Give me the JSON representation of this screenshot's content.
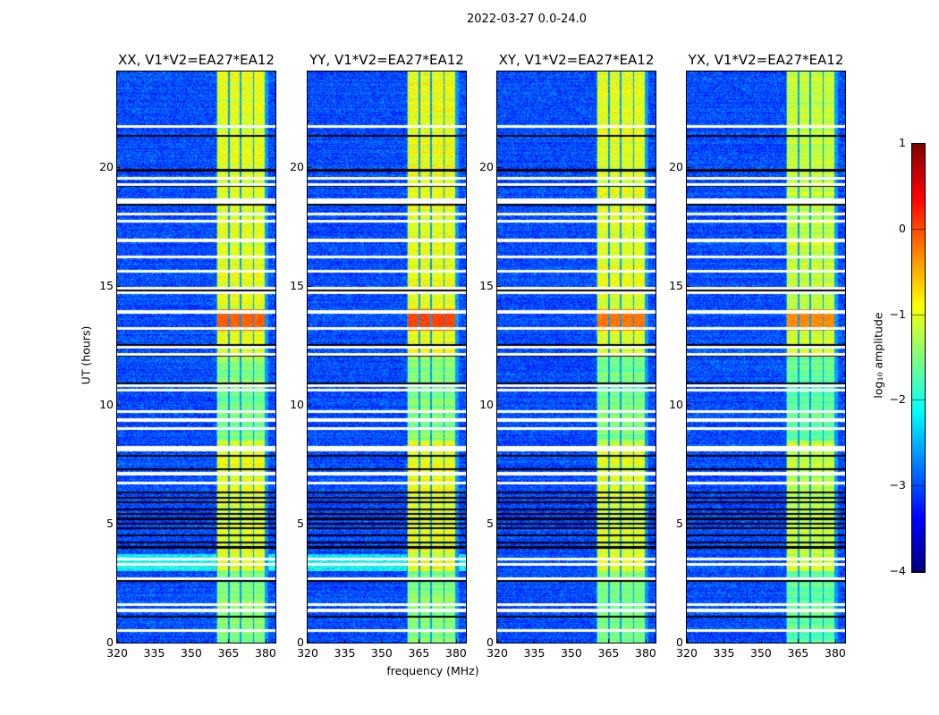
{
  "chart_data": {
    "type": "heatmap",
    "suptitle": "2022-03-27 0.0-24.0",
    "xlabel": "frequency (MHz)",
    "ylabel": "UT (hours)",
    "xlim": [
      320,
      384
    ],
    "ylim": [
      0,
      24
    ],
    "xticks": [
      "320",
      "335",
      "350",
      "365",
      "380"
    ],
    "xtick_values": [
      320,
      335,
      350,
      365,
      380
    ],
    "yticks": [
      "0",
      "5",
      "10",
      "15",
      "20"
    ],
    "ytick_values": [
      0,
      5,
      10,
      15,
      20
    ],
    "panels": [
      {
        "title": "XX, V1*V2=EA27*EA12",
        "rfi_peak": -0.1,
        "band_level": -1.0
      },
      {
        "title": "YY, V1*V2=EA27*EA12",
        "rfi_peak": 0.05,
        "band_level": -0.95
      },
      {
        "title": "XY, V1*V2=EA27*EA12",
        "rfi_peak": -0.2,
        "band_level": -1.0
      },
      {
        "title": "YX, V1*V2=EA27*EA12",
        "rfi_peak": -0.3,
        "band_level": -1.15
      }
    ],
    "background_level": -3.0,
    "signal_bands_mhz": [
      [
        360.6,
        364.8
      ],
      [
        365.4,
        369.6
      ],
      [
        370.2,
        374.8
      ],
      [
        375.4,
        379.8
      ]
    ],
    "rfi_hours": [
      13.1,
      14.0
    ],
    "flagged_hours_white": [
      21.7,
      19.5,
      19.25,
      18.55,
      18.5,
      18.0,
      17.7,
      16.9,
      16.2,
      15.6,
      14.9,
      14.7,
      13.9,
      13.2,
      12.4,
      12.1,
      10.8,
      10.6,
      9.7,
      9.35,
      9.0,
      8.2,
      8.1,
      7.1,
      6.7,
      3.5,
      3.3,
      2.7,
      1.6,
      1.35,
      0.5
    ],
    "flagged_hours_black": [
      21.3,
      19.85,
      19.2,
      18.4,
      14.8,
      12.5,
      12.05,
      10.9,
      7.85,
      7.3,
      6.3,
      6.1,
      5.9,
      5.6,
      5.4,
      5.2,
      5.0,
      4.8,
      4.5,
      4.2,
      4.0,
      2.6,
      1.1
    ],
    "colorbar": {
      "label": "log₁₀ amplitude",
      "ticks": [
        "1",
        "0",
        "−1",
        "−2",
        "−3",
        "−4"
      ],
      "tick_values": [
        1,
        0,
        -1,
        -2,
        -3,
        -4
      ],
      "range": [
        -4,
        1
      ],
      "colormap": "jet"
    }
  }
}
